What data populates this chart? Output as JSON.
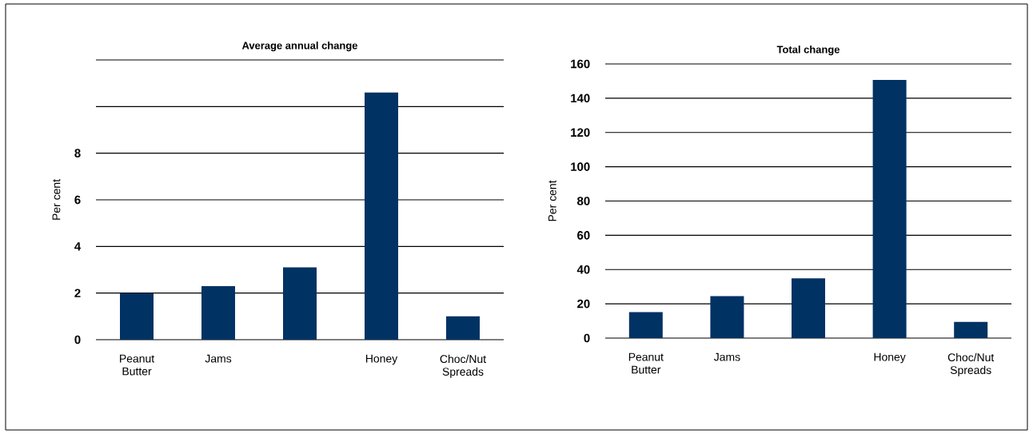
{
  "chart_data": [
    {
      "type": "bar",
      "title": "Average annual change",
      "ylabel": "Per cent",
      "categories": [
        "Peanut Butter",
        "Jams",
        null,
        "Honey",
        "Choc/Nut Spreads"
      ],
      "values": [
        2.0,
        2.3,
        3.1,
        10.6,
        1.0
      ],
      "color": "#003263",
      "ylim": [
        0,
        12
      ],
      "yticks": [
        0,
        2,
        4,
        6,
        8,
        {
          "value": 10,
          "label": null
        },
        {
          "value": 12,
          "label": null
        }
      ],
      "grid": "y"
    },
    {
      "type": "bar",
      "title": "Total change",
      "ylabel": "Per cent",
      "categories": [
        "Peanut Butter",
        "Jams",
        null,
        "Honey",
        "Choc/Nut Spreads"
      ],
      "values": [
        15.2,
        24.5,
        34.9,
        150.7,
        9.4
      ],
      "color": "#003263",
      "ylim": [
        0,
        160
      ],
      "yticks": [
        0,
        20,
        40,
        60,
        80,
        100,
        120,
        140,
        160
      ],
      "grid": "y"
    }
  ]
}
